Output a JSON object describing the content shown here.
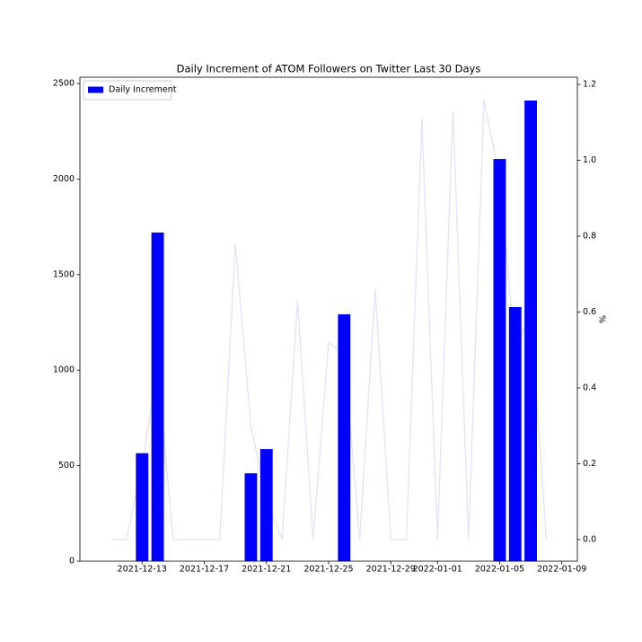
{
  "chart_data": {
    "type": "bar",
    "title": "Daily Increment of ATOM Followers on Twitter Last 30 Days",
    "y2label": "%",
    "xlim": [
      "2021-12-09",
      "2022-01-10"
    ],
    "xticks": [
      "2021-12-13",
      "2021-12-17",
      "2021-12-21",
      "2021-12-25",
      "2021-12-29",
      "2022-01-01",
      "2022-01-05",
      "2022-01-09"
    ],
    "ylim": [
      0,
      2533
    ],
    "yticks": [
      0,
      500,
      1000,
      1500,
      2000,
      2500
    ],
    "y2lim": [
      -0.057,
      1.219
    ],
    "y2ticks": [
      {
        "value": 0,
        "label": "0.0"
      },
      0.2,
      0.4,
      0.6,
      0.8,
      {
        "value": 1,
        "label": "1.0"
      },
      1.2
    ],
    "legend": "upper left",
    "series": [
      {
        "name": "Daily Increment",
        "type": "bar",
        "color": "#0000ff",
        "x": [
          "2021-12-13",
          "2021-12-14",
          "2021-12-20",
          "2021-12-21",
          "2021-12-26",
          "2022-01-05",
          "2022-01-06",
          "2022-01-07"
        ],
        "values": [
          565,
          1720,
          460,
          587,
          1292,
          2105,
          1330,
          2411
        ]
      },
      {
        "type": "line",
        "axis": "y2",
        "color": "#e2e2f8",
        "x": [
          "2021-12-11",
          "2021-12-12",
          "2021-12-13",
          "2021-12-14",
          "2021-12-15",
          "2021-12-16",
          "2021-12-17",
          "2021-12-18",
          "2021-12-19",
          "2021-12-20",
          "2021-12-21",
          "2021-12-22",
          "2021-12-23",
          "2021-12-24",
          "2021-12-25",
          "2021-12-26",
          "2021-12-27",
          "2021-12-28",
          "2021-12-29",
          "2021-12-30",
          "2021-12-31",
          "2022-01-01",
          "2022-01-02",
          "2022-01-03",
          "2022-01-04",
          "2022-01-05",
          "2022-01-06",
          "2022-01-07",
          "2022-01-08"
        ],
        "values": [
          0,
          0,
          0.2,
          0.45,
          0,
          0,
          0,
          0,
          0.78,
          0.3,
          0.1,
          0,
          0.63,
          0,
          0.52,
          0.49,
          0,
          0.66,
          0,
          0,
          1.11,
          0,
          1.13,
          0,
          1.16,
          0.95,
          0.5,
          0.6,
          0
        ]
      }
    ]
  }
}
